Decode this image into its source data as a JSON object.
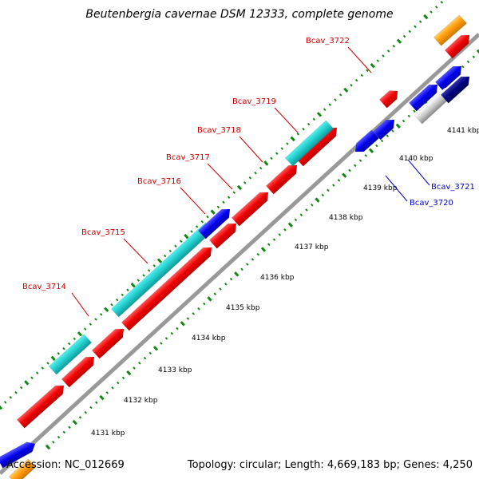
{
  "title": "Beutenbergia cavernae DSM 12333, complete genome",
  "footer": {
    "accession": "Accession: NC_012669",
    "summary": "Topology: circular; Length: 4,669,183 bp; Genes: 4,250"
  },
  "ticks": [
    "4131 kbp",
    "4132 kbp",
    "4133 kbp",
    "4134 kbp",
    "4135 kbp",
    "4136 kbp",
    "4137 kbp",
    "4138 kbp",
    "4139 kbp",
    "4140 kbp",
    "4141 kbp"
  ],
  "gene_labels": [
    {
      "text": "Bcav_3714",
      "color": "#cc0000"
    },
    {
      "text": "Bcav_3715",
      "color": "#cc0000"
    },
    {
      "text": "Bcav_3716",
      "color": "#cc0000"
    },
    {
      "text": "Bcav_3717",
      "color": "#cc0000"
    },
    {
      "text": "Bcav_3718",
      "color": "#cc0000"
    },
    {
      "text": "Bcav_3719",
      "color": "#cc0000"
    },
    {
      "text": "Bcav_3722",
      "color": "#cc0000"
    },
    {
      "text": "Bcav_3720",
      "color": "#0000cc"
    },
    {
      "text": "Bcav_3721",
      "color": "#0000cc"
    }
  ],
  "colors": {
    "cds_forward": "#ee0000",
    "cds_reverse": "#0000ee",
    "rna": "#22cccc",
    "other": "#ff9900",
    "dark_blue": "#000080",
    "backbone": "#999999",
    "grid": "#118811"
  }
}
